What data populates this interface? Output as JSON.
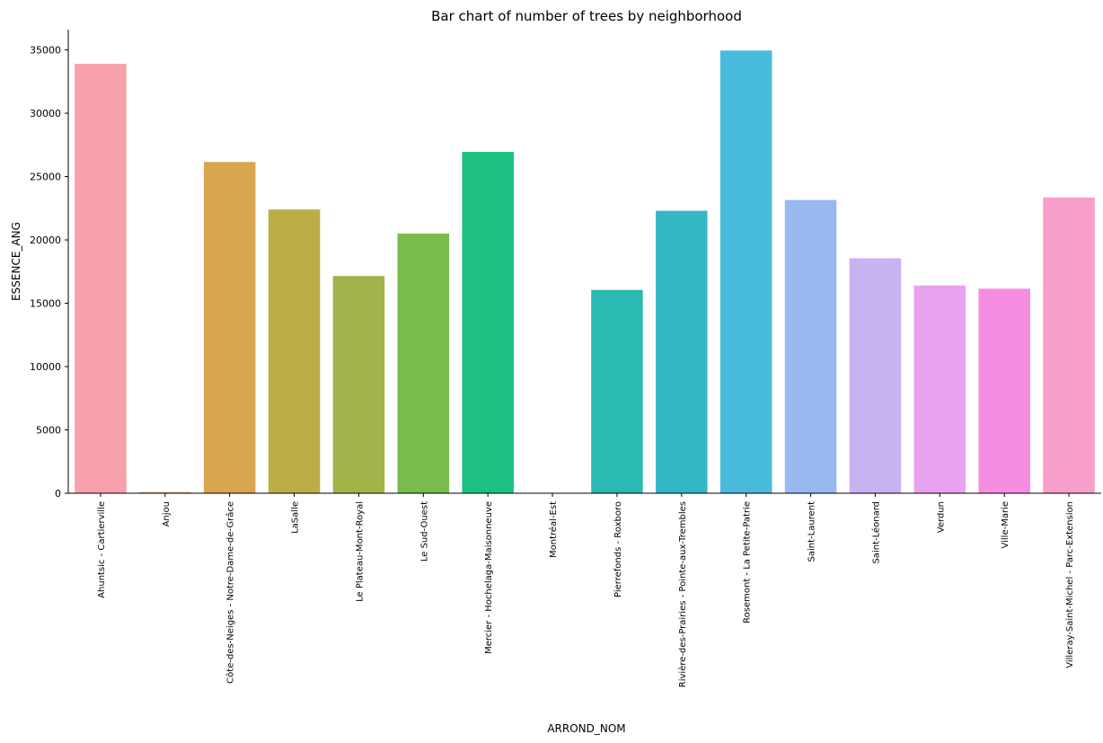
{
  "chart_data": {
    "type": "bar",
    "title": "Bar chart of number of trees by neighborhood",
    "xlabel": "ARROND_NOM",
    "ylabel": "ESSENCE_ANG",
    "ylim": [
      0,
      36600
    ],
    "yticks": [
      0,
      5000,
      10000,
      15000,
      20000,
      25000,
      30000,
      35000
    ],
    "grid": false,
    "categories": [
      "Ahuntsic - Cartierville",
      "Anjou",
      "Côte-des-Neiges - Notre-Dame-de-Grâce",
      "LaSalle",
      "Le Plateau-Mont-Royal",
      "Le Sud-Ouest",
      "Mercier - Hochelaga-Maisonneuve",
      "Montréal-Est",
      "Pierrefonds - Roxboro",
      "Rivière-des-Prairies - Pointe-aux-Trembles",
      "Rosemont - La Petite-Patrie",
      "Saint-Laurent",
      "Saint-Léonard",
      "Verdun",
      "Ville-Marie",
      "Villeray-Saint-Michel - Parc-Extension"
    ],
    "values": [
      33900,
      90,
      26150,
      22400,
      17150,
      20500,
      26950,
      0,
      16050,
      22300,
      34950,
      23150,
      18550,
      16400,
      16150,
      23350
    ],
    "colors": [
      "#f7a1ad",
      "#f19c74",
      "#d7a64f",
      "#bcad48",
      "#a2b34a",
      "#78bc4d",
      "#1cc081",
      "#21bea3",
      "#2bb9b4",
      "#34b7c5",
      "#48bbdd",
      "#98b8f0",
      "#c7b2f2",
      "#e8a2ef",
      "#f58ee0",
      "#f79ecb"
    ]
  }
}
